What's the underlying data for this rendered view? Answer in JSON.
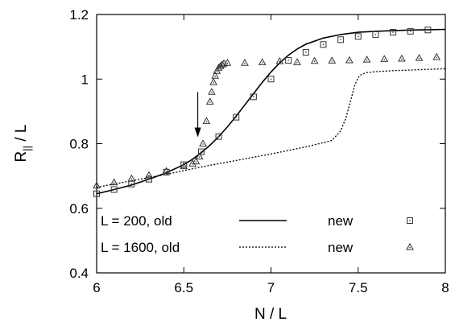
{
  "chart_data": {
    "type": "line",
    "xlabel": "N / L",
    "ylabel_main": "R",
    "ylabel_sub": "||",
    "ylabel_tail": " / L",
    "xlim": [
      6,
      8
    ],
    "ylim": [
      0.4,
      1.2
    ],
    "xticks": [
      6,
      6.5,
      7,
      7.5,
      8
    ],
    "xtick_labels": [
      "6",
      "6.5",
      "7",
      "7.5",
      "8"
    ],
    "yticks": [
      0.4,
      0.6,
      0.8,
      1.0,
      1.2
    ],
    "ytick_labels": [
      "0.4",
      "0.6",
      "0.8",
      "1",
      "1.2"
    ],
    "grid": false,
    "legend_position": "bottom-left",
    "legend": [
      {
        "label": "L =   200, old",
        "label2": "new"
      },
      {
        "label": "L = 1600, old",
        "label2": "new"
      }
    ],
    "annotation": {
      "type": "arrow",
      "x": 6.58,
      "y_from": 0.96,
      "y_to": 0.82
    },
    "series": [
      {
        "style": "solid-line",
        "x": [
          6.0,
          6.1,
          6.2,
          6.3,
          6.4,
          6.5,
          6.55,
          6.6,
          6.65,
          6.7,
          6.75,
          6.8,
          6.85,
          6.9,
          6.95,
          7.0,
          7.05,
          7.1,
          7.15,
          7.2,
          7.3,
          7.4,
          7.5,
          7.6,
          7.7,
          7.8,
          7.9,
          8.0
        ],
        "y": [
          0.645,
          0.658,
          0.672,
          0.69,
          0.71,
          0.735,
          0.752,
          0.772,
          0.795,
          0.822,
          0.852,
          0.885,
          0.92,
          0.955,
          0.99,
          1.022,
          1.05,
          1.074,
          1.093,
          1.108,
          1.127,
          1.138,
          1.145,
          1.148,
          1.15,
          1.152,
          1.153,
          1.154
        ]
      },
      {
        "style": "dotted-line",
        "x": [
          6.0,
          6.2,
          6.4,
          6.6,
          6.8,
          7.0,
          7.2,
          7.35,
          7.4,
          7.43,
          7.46,
          7.48,
          7.5,
          7.52,
          7.55,
          7.6,
          7.7,
          7.8,
          7.9,
          8.0
        ],
        "y": [
          0.665,
          0.685,
          0.705,
          0.728,
          0.748,
          0.768,
          0.79,
          0.81,
          0.84,
          0.88,
          0.94,
          0.98,
          1.005,
          1.015,
          1.02,
          1.023,
          1.026,
          1.028,
          1.03,
          1.032
        ]
      },
      {
        "style": "square-markers",
        "x": [
          6.0,
          6.1,
          6.2,
          6.3,
          6.4,
          6.5,
          6.6,
          6.7,
          6.8,
          6.9,
          7.0,
          7.1,
          7.2,
          7.3,
          7.4,
          7.5,
          7.6,
          7.7,
          7.8,
          7.9
        ],
        "y": [
          0.645,
          0.658,
          0.675,
          0.69,
          0.712,
          0.735,
          0.775,
          0.822,
          0.882,
          0.945,
          1.0,
          1.058,
          1.083,
          1.107,
          1.122,
          1.132,
          1.138,
          1.145,
          1.148,
          1.152
        ]
      },
      {
        "style": "triangle-markers",
        "x": [
          6.0,
          6.1,
          6.2,
          6.3,
          6.4,
          6.5,
          6.55,
          6.57,
          6.59,
          6.61,
          6.63,
          6.65,
          6.66,
          6.67,
          6.68,
          6.69,
          6.7,
          6.71,
          6.72,
          6.73,
          6.75,
          6.85,
          6.95,
          7.05,
          7.15,
          7.25,
          7.35,
          7.45,
          7.55,
          7.65,
          7.75,
          7.85,
          7.95
        ],
        "y": [
          0.67,
          0.68,
          0.692,
          0.702,
          0.715,
          0.73,
          0.738,
          0.745,
          0.76,
          0.8,
          0.87,
          0.93,
          0.96,
          0.99,
          1.01,
          1.025,
          1.035,
          1.04,
          1.045,
          1.048,
          1.05,
          1.05,
          1.052,
          1.055,
          1.052,
          1.056,
          1.057,
          1.058,
          1.06,
          1.062,
          1.063,
          1.065,
          1.068
        ]
      }
    ]
  }
}
